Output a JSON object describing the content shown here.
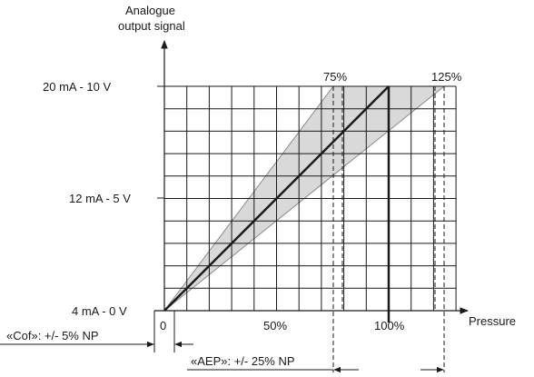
{
  "axes": {
    "y_label_line1": "Analogue",
    "y_label_line2": "output signal",
    "x_label": "Pressure"
  },
  "y_ticks": {
    "top": "20 mA - 10 V",
    "mid": "12 mA - 5 V",
    "bottom": "4 mA - 0 V"
  },
  "x_ticks": {
    "zero": "0",
    "fifty": "50%",
    "hundred": "100%"
  },
  "markers": {
    "p75": "75%",
    "p125": "125%"
  },
  "cof": {
    "open": "«",
    "keyword": "Cof",
    "rest": "»: +/- 5% NP"
  },
  "aep": {
    "open": "«",
    "keyword": "AEP",
    "rest": "»: +/- 25% NP"
  },
  "chart_data": {
    "type": "line",
    "x": [
      0,
      100
    ],
    "xlabel": "Pressure",
    "ylabel": "Analogue output signal",
    "y_tick_labels": [
      "4 mA - 0 V",
      "12 mA - 5 V",
      "20 mA - 10 V"
    ],
    "x_tick_labels": [
      "0",
      "50%",
      "100%"
    ],
    "tolerance_band_percent": 25,
    "reference_lines_percent": [
      75,
      125
    ],
    "grid": true,
    "colors": {
      "band": "#d9d9d9",
      "line": "#1a1a1a",
      "grid": "#1a1a1a"
    }
  }
}
